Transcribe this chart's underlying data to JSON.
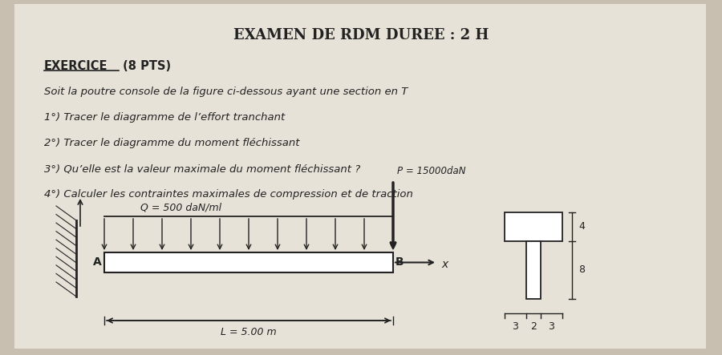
{
  "title": "EXAMEN DE RDM DUREE : 2 H",
  "section_title_underlined": "EXERCICE",
  "section_title_rest": " (8 PTS)",
  "lines": [
    "Soit la poutre console de la figure ci-dessous ayant une section en T",
    "1°) Tracer le diagramme de l’effort tranchant",
    "2°) Tracer le diagramme du moment fléchissant",
    "3°) Qu’elle est la valeur maximale du moment fléchissant ?",
    "4°) Calculer les contraintes maximales de compression et de traction"
  ],
  "load_label": "Q = 500 daN/ml",
  "point_load_label": "P = 15000daN",
  "length_label": "L = 5.00 m",
  "point_A": "A",
  "point_B": "B",
  "axis_label": "x",
  "bg_color": "#c8bfb0",
  "paper_color": "#e6e2d8",
  "text_color": "#222222",
  "dim_labels_right": [
    "4",
    "8"
  ],
  "dim_labels_bottom": [
    "3",
    "2",
    "3"
  ]
}
